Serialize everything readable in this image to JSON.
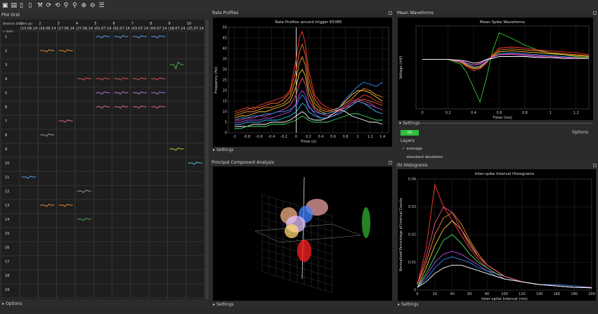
{
  "toolbar": {
    "icons": [
      "open-folder-icon",
      "new-file-icon",
      "document-icon",
      "page-icon",
      "tool-icon",
      "refresh-icon",
      "reload-icon",
      "zoom-in-icon",
      "zoom-icon",
      "expand-icon",
      "collapse-icon",
      "list-icon"
    ]
  },
  "plot_grid": {
    "title": "Plot Grid",
    "header_label": "Sessions (dd.mm.yy)",
    "unit_label": "↓ Units",
    "columns": [
      {
        "num": "1",
        "date": "(13.06.14"
      },
      {
        "num": "2",
        "date": "(16.06.14"
      },
      {
        "num": "3",
        "date": "(17.06.14"
      },
      {
        "num": "4",
        "date": "(27.06.14"
      },
      {
        "num": "5",
        "date": "(01.07.14"
      },
      {
        "num": "6",
        "date": "(02.07.14"
      },
      {
        "num": "7",
        "date": "(03.07.14"
      },
      {
        "num": "8",
        "date": "(04.07.14"
      },
      {
        "num": "9",
        "date": "(18.07.14"
      },
      {
        "num": "10",
        "date": "(25.07.14"
      }
    ],
    "rows": [
      "1",
      "2",
      "3",
      "4",
      "5",
      "6",
      "7",
      "8",
      "9",
      "10",
      "11",
      "12",
      "13",
      "14",
      "15",
      "16",
      "17",
      "18",
      "19"
    ],
    "footer": "Options",
    "colors": {
      "blue": "#5aa0e8",
      "orange": "#e08a3a",
      "red": "#d9534f",
      "green": "#4caf50",
      "purple": "#b07ad8",
      "pink": "#d86a8a",
      "gray": "#9a9a9a",
      "yellow": "#c8c844",
      "cyan": "#55c0e0"
    }
  },
  "rate_profiles": {
    "panel_title": "Rate Profiles",
    "settings": "Settings",
    "chart_data": {
      "type": "line",
      "title": "Rate Profiles around trigger 65385",
      "xlabel": "Time (s)",
      "ylabel": "Frequency (Hz)",
      "xlim": [
        -1.1,
        1.5
      ],
      "ylim": [
        0,
        50
      ],
      "x_ticks": [
        "-1",
        "-0.8",
        "-0.6",
        "-0.4",
        "-0.2",
        "0",
        "0.2",
        "0.4",
        "0.6",
        "0.8",
        "1",
        "1.2",
        "1.4"
      ],
      "y_ticks": [
        "0",
        "5",
        "10",
        "15",
        "20",
        "25",
        "30",
        "35",
        "40",
        "45",
        "50"
      ],
      "x": [
        -1,
        -0.9,
        -0.8,
        -0.7,
        -0.6,
        -0.5,
        -0.4,
        -0.3,
        -0.2,
        -0.1,
        0,
        0.05,
        0.1,
        0.15,
        0.2,
        0.3,
        0.4,
        0.5,
        0.6,
        0.7,
        0.8,
        0.9,
        1,
        1.1,
        1.2,
        1.3,
        1.4
      ],
      "series": [
        {
          "color": "#ff3b30",
          "values": [
            10,
            11,
            12,
            11,
            13,
            14,
            15,
            16,
            17,
            20,
            35,
            45,
            48,
            42,
            30,
            18,
            14,
            12,
            11,
            10,
            12,
            14,
            16,
            18,
            17,
            15,
            14
          ]
        },
        {
          "color": "#ff6a2f",
          "values": [
            9,
            10,
            11,
            12,
            12,
            13,
            14,
            14,
            16,
            19,
            30,
            38,
            42,
            37,
            26,
            16,
            12,
            11,
            10,
            11,
            12,
            13,
            15,
            16,
            15,
            14,
            13
          ]
        },
        {
          "color": "#ff9a2a",
          "values": [
            8,
            9,
            10,
            10,
            11,
            12,
            12,
            13,
            14,
            17,
            26,
            33,
            36,
            32,
            22,
            14,
            11,
            10,
            11,
            12,
            14,
            16,
            19,
            21,
            20,
            18,
            17
          ]
        },
        {
          "color": "#ffcc33",
          "values": [
            7,
            8,
            8,
            9,
            10,
            10,
            11,
            12,
            13,
            15,
            22,
            28,
            30,
            27,
            19,
            12,
            10,
            9,
            10,
            12,
            15,
            18,
            20,
            20,
            19,
            17,
            15
          ]
        },
        {
          "color": "#e94f8a",
          "values": [
            6,
            6,
            7,
            7,
            8,
            8,
            9,
            10,
            11,
            13,
            18,
            23,
            26,
            23,
            16,
            11,
            9,
            8,
            9,
            11,
            13,
            15,
            16,
            15,
            14,
            12,
            11
          ]
        },
        {
          "color": "#b44fe9",
          "values": [
            5,
            5,
            6,
            6,
            6,
            7,
            7,
            8,
            9,
            10,
            14,
            18,
            20,
            18,
            13,
            9,
            7,
            7,
            8,
            10,
            12,
            14,
            15,
            14,
            13,
            12,
            11
          ]
        },
        {
          "color": "#2f8fff",
          "values": [
            6,
            7,
            7,
            8,
            8,
            9,
            9,
            10,
            10,
            11,
            13,
            16,
            18,
            16,
            12,
            10,
            9,
            9,
            10,
            12,
            16,
            19,
            22,
            24,
            23,
            22,
            24
          ]
        },
        {
          "color": "#34c3ff",
          "values": [
            4,
            4,
            5,
            5,
            5,
            6,
            6,
            6,
            7,
            8,
            10,
            12,
            14,
            13,
            10,
            8,
            7,
            7,
            8,
            9,
            11,
            13,
            15,
            14,
            12,
            10,
            9
          ]
        },
        {
          "color": "#ffffff",
          "values": [
            3,
            3,
            3,
            4,
            4,
            4,
            5,
            5,
            5,
            6,
            8,
            9,
            10,
            9,
            7,
            6,
            6,
            7,
            9,
            11,
            10,
            8,
            7,
            6,
            5,
            5,
            4
          ]
        },
        {
          "color": "#44dd66",
          "values": [
            2,
            2,
            3,
            3,
            3,
            3,
            4,
            4,
            4,
            5,
            6,
            7,
            8,
            7,
            6,
            5,
            5,
            5,
            6,
            7,
            8,
            9,
            9,
            8,
            7,
            6,
            6
          ]
        }
      ]
    }
  },
  "mean_waveforms": {
    "panel_title": "Mean Waveforms",
    "chart_data": {
      "type": "line",
      "title": "Mean Spike Waveforms",
      "xlabel": "Time (ms)",
      "ylabel": "Voltage (mV)",
      "xlim": [
        -0.05,
        1.3
      ],
      "x_ticks": [
        "0",
        "0.2",
        "0.4",
        "0.6",
        "0.8",
        "1",
        "1.2"
      ],
      "x": [
        0,
        0.1,
        0.2,
        0.3,
        0.35,
        0.4,
        0.45,
        0.5,
        0.55,
        0.6,
        0.7,
        0.8,
        0.9,
        1,
        1.1,
        1.2,
        1.3
      ],
      "series": [
        {
          "color": "#33cc33",
          "values": [
            0,
            0,
            0,
            -0.5,
            -1.5,
            -3,
            -4.5,
            -2,
            1,
            2.8,
            2.2,
            1.5,
            1,
            0.7,
            0.5,
            0.3,
            0.2
          ]
        },
        {
          "color": "#ff3b30",
          "values": [
            0,
            0,
            0,
            -0.3,
            -0.8,
            -1.2,
            -1,
            -0.4,
            0.5,
            1.2,
            1.3,
            1.2,
            1,
            0.9,
            0.8,
            0.7,
            0.5
          ]
        },
        {
          "color": "#ff8a2a",
          "values": [
            0,
            0,
            0,
            -0.3,
            -0.7,
            -1,
            -0.9,
            -0.3,
            0.4,
            1,
            1.1,
            1,
            0.9,
            0.7,
            0.6,
            0.5,
            0.4
          ]
        },
        {
          "color": "#ffcc33",
          "values": [
            0,
            0,
            0,
            -0.2,
            -0.6,
            -0.9,
            -0.8,
            -0.2,
            0.3,
            0.8,
            0.9,
            0.8,
            0.7,
            0.6,
            0.5,
            0.4,
            0.3
          ]
        },
        {
          "color": "#2f8fff",
          "values": [
            0,
            0,
            0,
            -0.2,
            -0.5,
            -0.8,
            -0.7,
            -0.2,
            0.2,
            0.6,
            0.7,
            0.6,
            0.5,
            0.4,
            0.3,
            0.2,
            0.1
          ]
        },
        {
          "color": "#b44fe9",
          "values": [
            0,
            0,
            0,
            -0.2,
            -0.4,
            -0.6,
            -0.5,
            -0.1,
            0.2,
            0.5,
            0.5,
            0.4,
            0.3,
            0.2,
            0.2,
            0.1,
            0.1
          ]
        },
        {
          "color": "#e94f8a",
          "values": [
            0,
            0,
            0,
            -0.1,
            -0.4,
            -0.6,
            -0.4,
            0,
            0.3,
            0.5,
            0.6,
            0.5,
            0.4,
            0.3,
            0.2,
            0.2,
            0.1
          ]
        },
        {
          "color": "#ffffff",
          "values": [
            0,
            0,
            0,
            -0.1,
            -0.2,
            -0.4,
            -0.3,
            0,
            0.1,
            0.3,
            0.3,
            0.3,
            0.2,
            0.2,
            0.1,
            0.1,
            0.1
          ]
        }
      ]
    },
    "settings": "Settings",
    "on_button": "On",
    "options": "Options",
    "layers_label": "Layers",
    "layers": [
      {
        "label": "average",
        "checked": true
      },
      {
        "label": "standard deviation",
        "checked": false
      }
    ]
  },
  "pca": {
    "panel_title": "Principal Component Analysis",
    "settings": "Settings"
  },
  "isi": {
    "panel_title": "ISI Histograms",
    "settings": "Settings",
    "chart_data": {
      "type": "line",
      "title": "Inter-spike Interval Histograms",
      "xlabel": "Inter-spike Interval (ms)",
      "ylabel": "Normalized Percentage of Interval Counts",
      "xlim": [
        0,
        200
      ],
      "ylim": [
        0,
        0.04
      ],
      "x_ticks": [
        "0",
        "20",
        "40",
        "60",
        "80",
        "100",
        "120",
        "140",
        "160",
        "180",
        "200"
      ],
      "y_ticks": [
        "0",
        "0.01",
        "0.02",
        "0.03",
        "0.04"
      ],
      "x": [
        0,
        10,
        20,
        30,
        40,
        50,
        60,
        70,
        80,
        90,
        100,
        120,
        140,
        160,
        180,
        200
      ],
      "series": [
        {
          "color": "#ff3b30",
          "values": [
            0.002,
            0.015,
            0.038,
            0.03,
            0.025,
            0.02,
            0.015,
            0.011,
            0.008,
            0.006,
            0.005,
            0.003,
            0.002,
            0.0015,
            0.001,
            0.001
          ]
        },
        {
          "color": "#ff8a2a",
          "values": [
            0.002,
            0.01,
            0.02,
            0.026,
            0.028,
            0.024,
            0.018,
            0.013,
            0.009,
            0.007,
            0.005,
            0.003,
            0.002,
            0.0015,
            0.001,
            0.001
          ]
        },
        {
          "color": "#ffcc33",
          "values": [
            0.001,
            0.008,
            0.016,
            0.022,
            0.025,
            0.022,
            0.017,
            0.012,
            0.009,
            0.007,
            0.005,
            0.003,
            0.002,
            0.0015,
            0.001,
            0.0008
          ]
        },
        {
          "color": "#b44fe9",
          "values": [
            0.001,
            0.005,
            0.01,
            0.013,
            0.014,
            0.013,
            0.011,
            0.009,
            0.007,
            0.006,
            0.004,
            0.003,
            0.002,
            0.0015,
            0.001,
            0.0008
          ]
        },
        {
          "color": "#2f8fff",
          "values": [
            0.001,
            0.004,
            0.008,
            0.011,
            0.012,
            0.011,
            0.01,
            0.008,
            0.007,
            0.005,
            0.004,
            0.003,
            0.002,
            0.002,
            0.0015,
            0.001
          ]
        },
        {
          "color": "#44dd66",
          "values": [
            0.001,
            0.006,
            0.012,
            0.018,
            0.02,
            0.017,
            0.013,
            0.01,
            0.008,
            0.006,
            0.005,
            0.003,
            0.002,
            0.0015,
            0.001,
            0.0008
          ]
        },
        {
          "color": "#e94f8a",
          "values": [
            0.002,
            0.012,
            0.024,
            0.03,
            0.028,
            0.022,
            0.016,
            0.012,
            0.009,
            0.007,
            0.005,
            0.003,
            0.002,
            0.0015,
            0.001,
            0.001
          ]
        },
        {
          "color": "#ffffff",
          "values": [
            0.001,
            0.003,
            0.006,
            0.008,
            0.009,
            0.009,
            0.008,
            0.007,
            0.006,
            0.005,
            0.004,
            0.003,
            0.002,
            0.0015,
            0.001,
            0.0008
          ]
        }
      ]
    }
  }
}
